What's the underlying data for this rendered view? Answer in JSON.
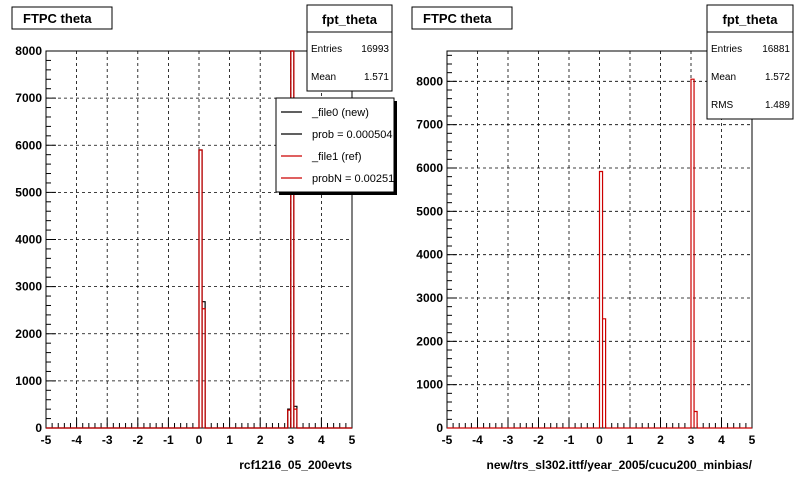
{
  "chart_data": [
    {
      "type": "histogram",
      "title": "FTPC theta",
      "xlabel": "rcf1216_05_200evts",
      "xlim": [
        -5,
        5
      ],
      "ylim": [
        0,
        8000
      ],
      "grid": true,
      "xticks": [
        "-5",
        "-4",
        "-3",
        "-2",
        "-1",
        "0",
        "1",
        "2",
        "3",
        "4",
        "5"
      ],
      "yticks": [
        "0",
        "1000",
        "2000",
        "3000",
        "4000",
        "5000",
        "6000",
        "7000",
        "8000"
      ],
      "stats": {
        "title": "fpt_theta",
        "rows": [
          {
            "label": "Entries",
            "value": "16993"
          },
          {
            "label": "Mean",
            "value": "1.571"
          }
        ]
      },
      "legend": {
        "placement": "top-right",
        "entries": [
          {
            "text": "_file0 (new)",
            "color": "#000000"
          },
          {
            "text": "prob = 0.000504",
            "color": "#000000"
          },
          {
            "text": "_file1 (ref)",
            "color": "#cc0000"
          },
          {
            "text": "probN = 0.00251",
            "color": "#cc0000"
          }
        ]
      },
      "series": [
        {
          "color": "#000000",
          "bins": [
            [
              0.0,
              0.1,
              5900
            ],
            [
              0.1,
              0.2,
              2680
            ],
            [
              2.9,
              3.0,
              400
            ],
            [
              3.0,
              3.1,
              8000
            ],
            [
              3.1,
              3.2,
              460
            ]
          ]
        },
        {
          "color": "#cc0000",
          "bins": [
            [
              0.0,
              0.1,
              5900
            ],
            [
              0.1,
              0.2,
              2530
            ],
            [
              2.9,
              3.0,
              380
            ],
            [
              3.0,
              3.1,
              8000
            ],
            [
              3.1,
              3.2,
              400
            ]
          ]
        }
      ]
    },
    {
      "type": "histogram",
      "title": "FTPC theta",
      "xlabel": "new/trs_sl302.ittf/year_2005/cucu200_minbias/",
      "xlim": [
        -5,
        5
      ],
      "ylim": [
        0,
        8700
      ],
      "grid": true,
      "xticks": [
        "-5",
        "-4",
        "-3",
        "-2",
        "-1",
        "0",
        "1",
        "2",
        "3",
        "4",
        "5"
      ],
      "yticks": [
        "0",
        "1000",
        "2000",
        "3000",
        "4000",
        "5000",
        "6000",
        "7000",
        "8000"
      ],
      "stats": {
        "title": "fpt_theta",
        "rows": [
          {
            "label": "Entries",
            "value": "16881"
          },
          {
            "label": "Mean",
            "value": "1.572"
          },
          {
            "label": "RMS",
            "value": "1.489"
          }
        ]
      },
      "series": [
        {
          "color": "#cc0000",
          "bins": [
            [
              0.0,
              0.1,
              5920
            ],
            [
              0.1,
              0.2,
              2520
            ],
            [
              2.9,
              3.0,
              0
            ],
            [
              3.0,
              3.1,
              8050
            ],
            [
              3.1,
              3.2,
              380
            ]
          ]
        }
      ]
    }
  ]
}
